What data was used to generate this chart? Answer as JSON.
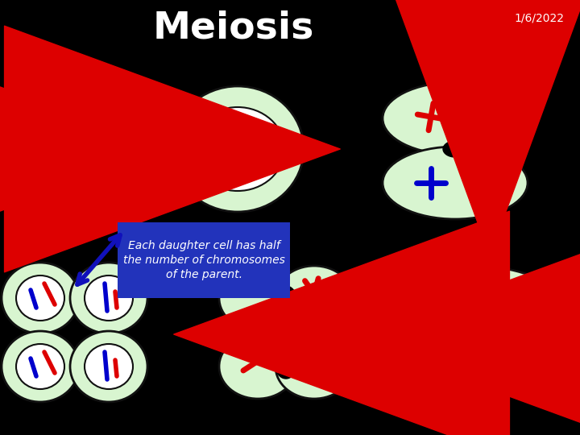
{
  "title": "Meiosis",
  "date": "1/6/2022",
  "bg_color": "#000000",
  "cell_fill": "#d8f5d0",
  "cell_edge": "#111111",
  "nucleus_fill": "#ffffff",
  "nucleus_edge": "#111111",
  "red_chrom": "#dd0000",
  "blue_chrom": "#0000cc",
  "arrow_red": "#cc0000",
  "arrow_blue": "#1111bb",
  "text_box_fill": "#2233bb",
  "text_box_text": "#ffffff",
  "annotation_text": "Each daughter cell has half\nthe number of chromosomes\nof the parent."
}
